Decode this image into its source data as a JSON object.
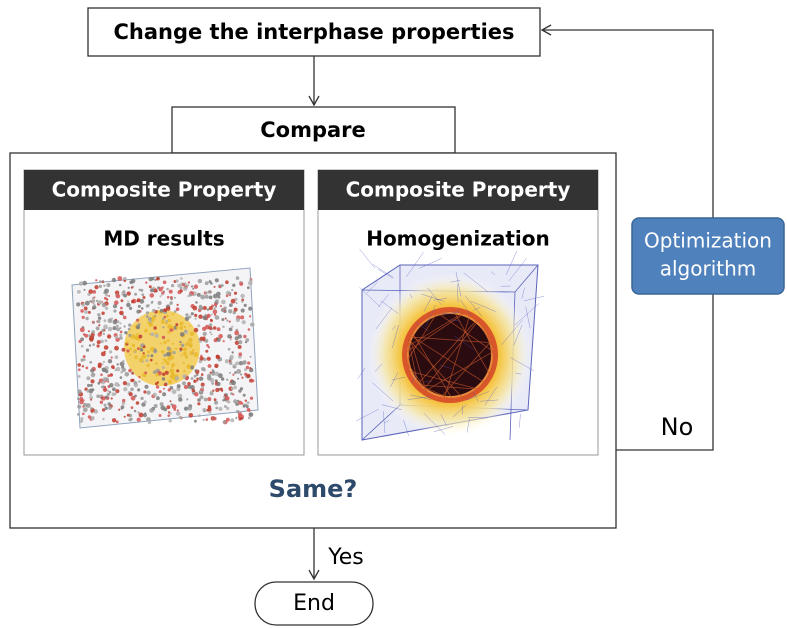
{
  "nodes": {
    "change": {
      "label": "Change the interphase properties"
    },
    "compare": {
      "label": "Compare"
    },
    "left_panel": {
      "header": "Composite Property",
      "title": "MD results"
    },
    "right_panel": {
      "header": "Composite Property",
      "title": "Homogenization"
    },
    "question": {
      "label": "Same?"
    },
    "optimization": {
      "lines": [
        "Optimization",
        "algorithm"
      ]
    },
    "end": {
      "label": "End"
    }
  },
  "edges": {
    "no": "No",
    "yes": "Yes"
  }
}
